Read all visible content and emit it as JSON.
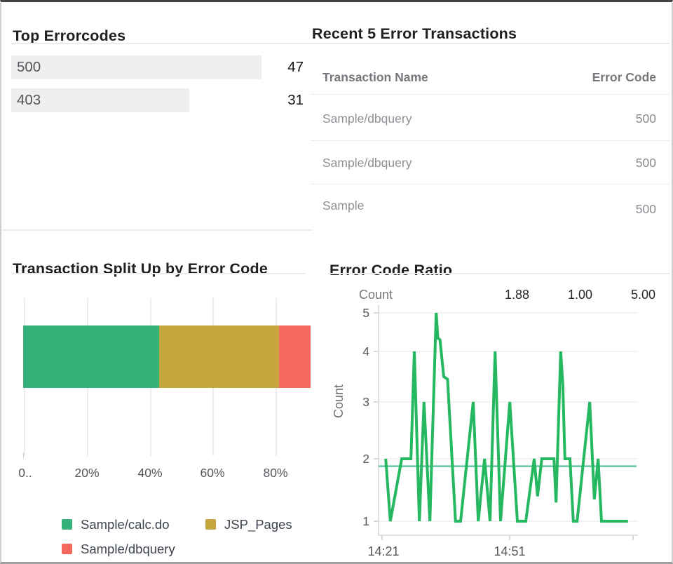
{
  "panels": {
    "top_errorcodes": {
      "title": "Top Errorcodes",
      "items": [
        {
          "label": "500",
          "value": "47"
        },
        {
          "label": "403",
          "value": "31"
        }
      ]
    },
    "recent_transactions": {
      "title": "Recent 5 Error Transactions",
      "columns": {
        "name": "Transaction Name",
        "code": "Error Code"
      },
      "rows": [
        {
          "name": "Sample/dbquery",
          "code": "500"
        },
        {
          "name": "Sample/dbquery",
          "code": "500"
        },
        {
          "name": "Sample",
          "code": "500"
        }
      ]
    },
    "split_up": {
      "title": "Transaction Split Up by Error Code"
    },
    "error_ratio": {
      "title": "Error Code Ratio"
    }
  },
  "chart_data": [
    {
      "type": "bar",
      "subtype": "horizontal-value-bars",
      "title": "Top Errorcodes",
      "categories": [
        "500",
        "403"
      ],
      "values": [
        47,
        31
      ],
      "bar_color": "#efefef"
    },
    {
      "type": "bar",
      "subtype": "horizontal-stacked-percent",
      "title": "Transaction Split Up by Error Code",
      "series": [
        {
          "name": "Sample/calc.do",
          "value_pct": 43.3,
          "color": "#35b279"
        },
        {
          "name": "JSP_Pages",
          "value_pct": 38.2,
          "color": "#c6a73d"
        },
        {
          "name": "Sample/dbquery",
          "value_pct": 18.5,
          "color": "#f4685e"
        }
      ],
      "x_tick_labels": [
        "0..",
        "20%",
        "40%",
        "60%",
        "80%"
      ],
      "xlim": [
        0,
        100
      ],
      "grid": "vertical",
      "legend_position": "bottom"
    },
    {
      "type": "line",
      "title": "Error Code Ratio",
      "ylabel": "Count",
      "header_stats": {
        "label": "Count",
        "values": [
          "1.88",
          "1.00",
          "5.00"
        ]
      },
      "y_ticks": [
        1,
        2,
        3,
        4,
        5
      ],
      "ylim": [
        1,
        5
      ],
      "x_tick_labels": [
        "14:21",
        "14:51"
      ],
      "x_start_time": "14:21",
      "x_unit": "minutes",
      "average_line": 1.88,
      "line_color": "#25b860",
      "average_line_color": "#62c5a5",
      "points": [
        [
          1.2,
          2
        ],
        [
          2.3,
          1
        ],
        [
          5,
          2
        ],
        [
          7.2,
          2
        ],
        [
          8,
          4
        ],
        [
          9.2,
          1
        ],
        [
          10.3,
          3
        ],
        [
          11.7,
          1
        ],
        [
          13.2,
          5
        ],
        [
          13.6,
          4.35
        ],
        [
          14.1,
          4.3
        ],
        [
          15,
          3.5
        ],
        [
          15.9,
          3.45
        ],
        [
          17.8,
          1
        ],
        [
          19,
          1
        ],
        [
          22,
          3
        ],
        [
          23.2,
          1
        ],
        [
          24.7,
          2
        ],
        [
          26,
          1
        ],
        [
          27.2,
          4
        ],
        [
          28.5,
          1
        ],
        [
          30.7,
          3
        ],
        [
          32.5,
          1
        ],
        [
          34.5,
          1
        ],
        [
          36.5,
          2
        ],
        [
          37.3,
          1.4
        ],
        [
          38.3,
          2
        ],
        [
          41.2,
          2
        ],
        [
          41.7,
          1.3
        ],
        [
          42.8,
          4
        ],
        [
          43.3,
          3.35
        ],
        [
          43.8,
          2
        ],
        [
          45,
          2
        ],
        [
          45.8,
          1
        ],
        [
          46.7,
          1
        ],
        [
          49.7,
          3
        ],
        [
          50.8,
          1.35
        ],
        [
          51.7,
          2
        ],
        [
          52.5,
          1
        ],
        [
          58.8,
          1
        ]
      ]
    }
  ]
}
